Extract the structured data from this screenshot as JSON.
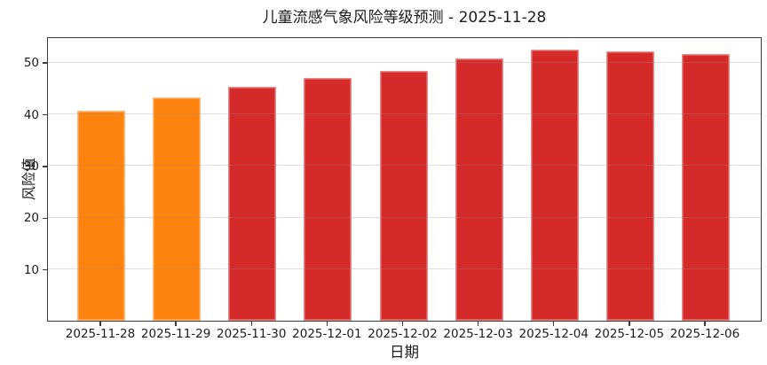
{
  "chart_data": {
    "type": "bar",
    "title": "儿童流感气象风险等级预测 - 2025-11-28",
    "xlabel": "日期",
    "ylabel": "风险值",
    "categories": [
      "2025-11-28",
      "2025-11-29",
      "2025-11-30",
      "2025-12-01",
      "2025-12-02",
      "2025-12-03",
      "2025-12-04",
      "2025-12-05",
      "2025-12-06"
    ],
    "values": [
      40.6,
      43.1,
      45.3,
      46.9,
      48.3,
      50.7,
      52.4,
      52.1,
      51.5
    ],
    "bar_colors": [
      "#FD820E",
      "#FD820E",
      "#D42A2A",
      "#D42A2A",
      "#D42A2A",
      "#D42A2A",
      "#D42A2A",
      "#D42A2A",
      "#D42A2A"
    ],
    "yticks": [
      10,
      20,
      30,
      40,
      50
    ],
    "ylim": [
      0,
      55
    ],
    "grid": true,
    "grid_on_top_of_bars": true,
    "legend": false,
    "colors": {
      "orange_bar": "#FD820E",
      "red_bar": "#D42A2A",
      "spine": "#3a3a3a",
      "gridline": "#e6e6e6",
      "text": "#1c1c1c",
      "background": "#ffffff"
    }
  }
}
